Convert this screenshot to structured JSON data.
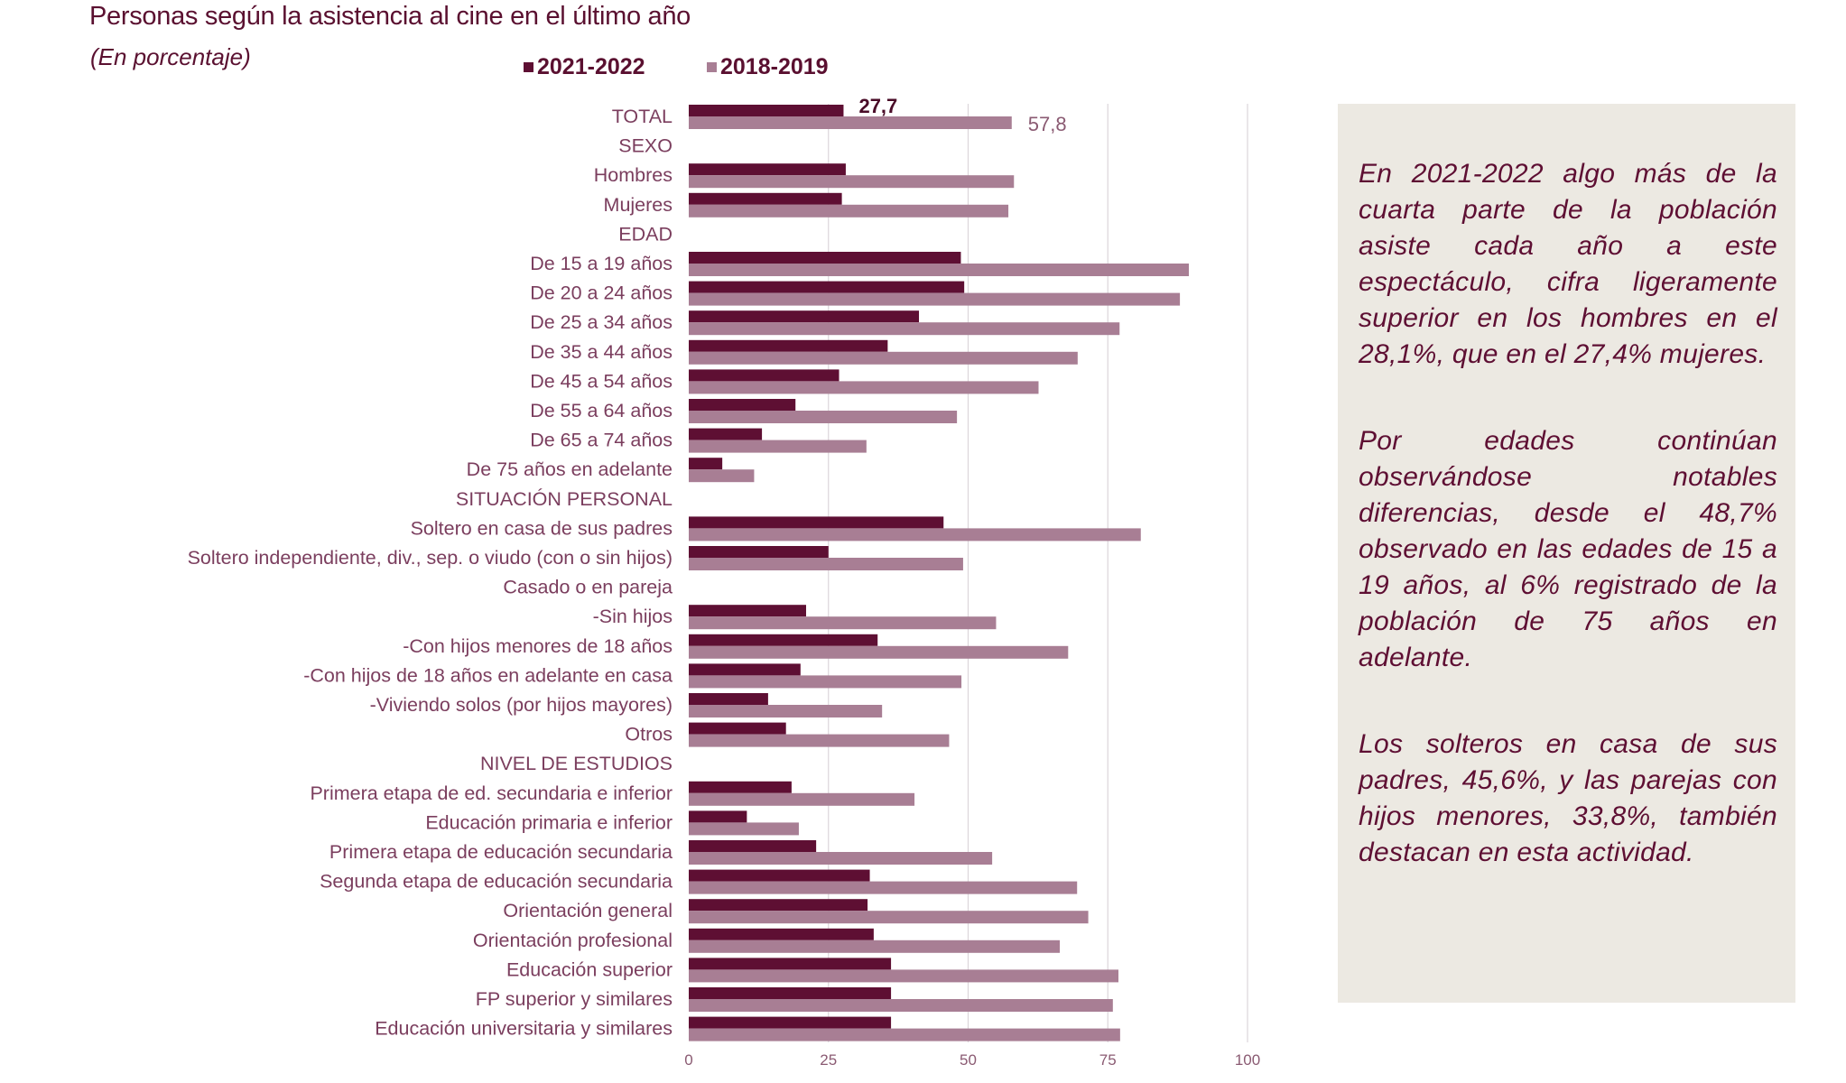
{
  "title": "Personas según la asistencia al cine en el último año",
  "subtitle": "(En porcentaje)",
  "colors": {
    "series_2021_2022": "#5e0f33",
    "series_2018_2019": "#a87e94",
    "box_background": "#ece9e2"
  },
  "chart_data": {
    "type": "bar",
    "orientation": "horizontal",
    "title": "Personas según la asistencia al cine en el último año",
    "subtitle": "(En porcentaje)",
    "xlim": [
      0,
      100
    ],
    "x_ticks": [
      "0",
      "25",
      "50",
      "75",
      "100"
    ],
    "grid": true,
    "legend_placement": "top",
    "categories": [
      "TOTAL",
      "SEXO",
      "Hombres",
      "Mujeres",
      "EDAD",
      "De 15 a 19 años",
      "De 20 a 24 años",
      "De 25 a 34 años",
      "De 35 a 44 años",
      "De 45 a 54 años",
      "De 55 a 64 años",
      "De 65 a 74 años",
      "De 75 años en adelante",
      "SITUACIÓN PERSONAL",
      "Soltero en casa de sus padres",
      "Soltero independiente, div., sep. o viudo (con o sin hijos)",
      "Casado o en pareja",
      "-Sin hijos",
      "-Con hijos menores de 18 años",
      "-Con hijos de 18 años en adelante en casa",
      "-Viviendo solos (por hijos mayores)",
      "Otros",
      "NIVEL DE ESTUDIOS",
      "Primera etapa de ed. secundaria e inferior",
      "Educación primaria e inferior",
      "Primera etapa de educación secundaria",
      "Segunda etapa de educación secundaria",
      "Orientación general",
      "Orientación profesional",
      "Educación superior",
      "FP superior y similares",
      "Educación universitaria y similares"
    ],
    "series": [
      {
        "name": "2021-2022",
        "values": [
          27.7,
          null,
          28.1,
          27.4,
          null,
          48.7,
          49.3,
          41.2,
          35.6,
          26.9,
          19.1,
          13.1,
          6.0,
          null,
          45.6,
          25.0,
          null,
          21.0,
          33.8,
          20.0,
          14.2,
          17.4,
          null,
          18.4,
          10.4,
          22.8,
          32.4,
          32.0,
          33.1,
          36.2,
          36.2,
          36.2
        ]
      },
      {
        "name": "2018-2019",
        "values": [
          57.8,
          null,
          58.2,
          57.2,
          null,
          89.5,
          87.9,
          77.1,
          69.6,
          62.6,
          48.0,
          31.8,
          11.7,
          null,
          80.9,
          49.1,
          null,
          55.0,
          67.9,
          48.8,
          34.6,
          46.6,
          null,
          40.4,
          19.7,
          54.3,
          69.5,
          71.5,
          66.4,
          76.9,
          75.9,
          77.2
        ]
      }
    ],
    "data_labels": [
      {
        "category": "TOTAL",
        "series": "2021-2022",
        "text": "27,7"
      },
      {
        "category": "TOTAL",
        "series": "2018-2019",
        "text": "57,8"
      }
    ]
  },
  "commentary": [
    "En 2021-2022 algo más de la cuarta parte de la población asiste cada año a este espectáculo, cifra ligeramente superior en los hombres en el 28,1%, que en el 27,4% mujeres.",
    "Por edades continúan observándose notables diferencias, desde el 48,7% observado en las edades de 15 a 19 años, al 6% registrado de la población de 75 años en adelante.",
    "Los solteros en casa de sus padres, 45,6%, y las parejas con hijos menores, 33,8%, también destacan en esta actividad."
  ]
}
